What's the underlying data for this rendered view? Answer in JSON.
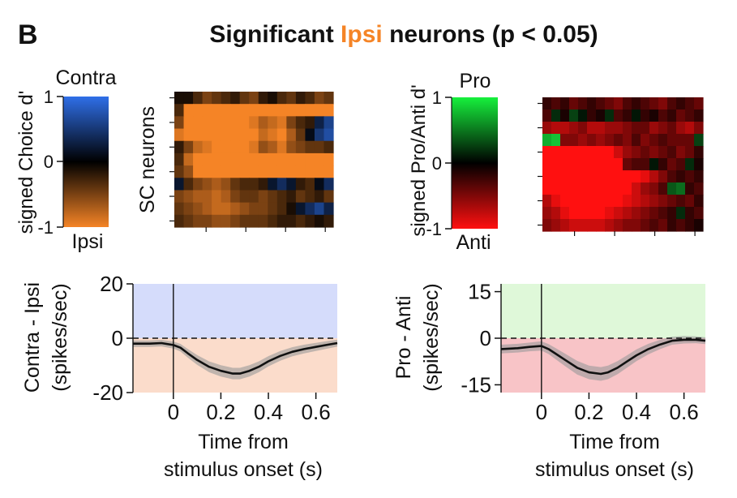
{
  "panel_label": "B",
  "title": {
    "pre": "Significant ",
    "highlight": "Ipsi",
    "post": " neurons (p < 0.05)",
    "highlight_color": "#f58426"
  },
  "colors": {
    "ipsi_orange": "#f58426",
    "contra_blue": "#2f6fe8",
    "pro_green": "#16d93c",
    "anti_red": "#ff1010",
    "contra_fill": "#d5dcfb",
    "ipsi_fill": "#fbdccb",
    "pro_fill": "#dff8d9",
    "anti_fill": "#f8c4c7",
    "sem_band": "#9a9a9a"
  },
  "chart_data": [
    {
      "type": "heatmap",
      "id": "choice-colorbar",
      "top_label": "Contra",
      "bottom_label": "Ipsi",
      "ylabel": "signed Choice d'",
      "ticks": [
        "1",
        "0",
        "-1"
      ],
      "range": [
        -1,
        1
      ],
      "colormap": "blue-black-orange"
    },
    {
      "type": "heatmap",
      "id": "choice-heatmap",
      "ylabel": "SC neurons",
      "values": [
        [
          -0.1,
          -0.1,
          -0.3,
          -0.5,
          -0.4,
          -0.3,
          -0.2,
          -0.4,
          -0.5,
          -0.2,
          -0.1,
          -0.3,
          -0.4,
          -0.2,
          -0.3,
          -0.5,
          -0.4
        ],
        [
          -0.3,
          -1,
          -1,
          -1,
          -1,
          -1,
          -1,
          -1,
          -1,
          -1,
          -1,
          -1,
          -1,
          -1,
          -1,
          -1,
          -1
        ],
        [
          -0.5,
          -1,
          -1,
          -1,
          -1,
          -1,
          -1,
          -1,
          -0.9,
          -0.7,
          -0.8,
          -0.9,
          -0.5,
          -0.3,
          -0.2,
          0.3,
          0.6
        ],
        [
          -0.9,
          -1,
          -1,
          -1,
          -1,
          -1,
          -1,
          -1,
          -1,
          -0.8,
          -0.9,
          -1,
          -0.7,
          -0.4,
          0.1,
          0.5,
          0.7
        ],
        [
          -0.2,
          -0.5,
          -0.8,
          -0.9,
          -1,
          -1,
          -1,
          -1,
          -0.9,
          -0.6,
          -0.7,
          -0.9,
          -0.6,
          -0.5,
          -0.4,
          -0.4,
          -0.3
        ],
        [
          -0.3,
          -0.8,
          -1,
          -1,
          -1,
          -1,
          -1,
          -1,
          -1,
          -1,
          -1,
          -1,
          -1,
          -1,
          -1,
          -1,
          -1
        ],
        [
          -0.4,
          -0.6,
          -1,
          -1,
          -1,
          -1,
          -1,
          -1,
          -1,
          -1,
          -1,
          -1,
          -1,
          -1,
          -1,
          -1,
          -1
        ],
        [
          0.2,
          -0.3,
          -0.5,
          -0.6,
          -0.7,
          -0.6,
          -0.4,
          -0.3,
          -0.3,
          -0.2,
          0.2,
          0.4,
          0.2,
          -0.2,
          -0.3,
          0.1,
          0.4
        ],
        [
          -0.5,
          -0.6,
          -0.7,
          -0.7,
          -0.8,
          -0.7,
          -0.5,
          -0.4,
          -0.4,
          -0.5,
          -0.4,
          -0.3,
          -0.2,
          -0.4,
          -0.3,
          -0.2,
          -0.4
        ],
        [
          -0.4,
          -0.5,
          -0.6,
          -0.7,
          -0.8,
          -0.8,
          -0.7,
          -0.6,
          -0.5,
          -0.5,
          -0.4,
          -0.3,
          -0.1,
          0.2,
          0.4,
          0.6,
          0.3
        ],
        [
          -0.3,
          -0.4,
          -0.5,
          -0.5,
          -0.6,
          -0.6,
          -0.5,
          -0.4,
          -0.4,
          -0.4,
          -0.3,
          -0.2,
          -0.2,
          -0.3,
          -0.2,
          -0.1,
          -0.2
        ]
      ]
    },
    {
      "type": "line",
      "id": "choice-psth",
      "ylabel": [
        "Contra - Ipsi",
        "(spikes/sec)"
      ],
      "xlabel": [
        "Time from",
        "stimulus onset (s)"
      ],
      "xlim": [
        -0.17,
        0.69
      ],
      "ylim": [
        -20,
        20
      ],
      "xticks": [
        0,
        0.2,
        0.4,
        0.6
      ],
      "xtick_labels": [
        "0",
        "0.2",
        "0.4",
        "0.6"
      ],
      "yticks": [
        20,
        0,
        -20
      ],
      "ytick_labels": [
        "20",
        "0",
        "-20"
      ],
      "x": [
        -0.17,
        -0.1,
        -0.05,
        0,
        0.03,
        0.06,
        0.1,
        0.15,
        0.2,
        0.25,
        0.28,
        0.32,
        0.36,
        0.4,
        0.45,
        0.5,
        0.55,
        0.6,
        0.65,
        0.69
      ],
      "y": [
        -2,
        -2,
        -1.8,
        -2.5,
        -3.5,
        -5.5,
        -8,
        -10.5,
        -12,
        -13,
        -13,
        -12,
        -10.5,
        -8.5,
        -6.5,
        -5,
        -4,
        -3.2,
        -2.4,
        -1.8
      ],
      "sem": [
        1.2,
        1.2,
        1.2,
        1.3,
        1.4,
        1.6,
        1.8,
        2,
        2.1,
        2.1,
        2.1,
        2.1,
        2,
        1.9,
        1.8,
        1.7,
        1.6,
        1.5,
        1.4,
        1.3
      ]
    },
    {
      "type": "heatmap",
      "id": "proanti-colorbar",
      "top_label": "Pro",
      "bottom_label": "Anti",
      "ylabel": "signed Pro/Anti d'",
      "ticks": [
        "1",
        "0",
        "-1"
      ],
      "range": [
        -1,
        1
      ],
      "colormap": "green-black-red"
    },
    {
      "type": "heatmap",
      "id": "proanti-heatmap",
      "values": [
        [
          -0.2,
          -0.3,
          -0.2,
          -0.4,
          -0.3,
          -0.2,
          -0.3,
          -0.4,
          -0.5,
          -0.3,
          -0.2,
          -0.3,
          -0.4,
          -0.5,
          -0.3,
          -0.2,
          -0.3,
          -0.4
        ],
        [
          -0.3,
          0.2,
          -0.1,
          0.3,
          0.1,
          -0.2,
          -0.1,
          0.2,
          -0.3,
          -0.2,
          0.1,
          -0.2,
          -0.1,
          -0.3,
          -0.2,
          -0.4,
          -0.3,
          -0.2
        ],
        [
          -0.6,
          -0.7,
          -0.7,
          -0.6,
          -0.5,
          -0.7,
          -0.7,
          -0.6,
          -0.6,
          -0.5,
          -0.4,
          -0.4,
          -0.6,
          -0.5,
          -0.4,
          -0.6,
          -0.7,
          -0.5
        ],
        [
          0.8,
          0.9,
          -0.5,
          -0.5,
          -0.6,
          -0.5,
          -0.6,
          -0.5,
          -0.4,
          -0.5,
          -0.3,
          -0.5,
          -0.4,
          -0.3,
          -0.4,
          -0.4,
          -0.4,
          0.3
        ],
        [
          -1,
          -1,
          -1,
          -1,
          -1,
          -1,
          -1,
          -1,
          -0.8,
          -0.6,
          -0.5,
          -0.4,
          -0.5,
          -0.4,
          -0.3,
          -0.5,
          -0.4,
          -0.2
        ],
        [
          -1,
          -1,
          -1,
          -1,
          -1,
          -1,
          -1,
          -1,
          -1,
          -0.4,
          -0.3,
          -0.3,
          0.1,
          -0.2,
          -0.4,
          -0.3,
          0.2,
          -0.1
        ],
        [
          -1,
          -1,
          -1,
          -1,
          -1,
          -1,
          -1,
          -1,
          -1,
          -1,
          -1,
          -0.9,
          -0.7,
          -0.5,
          -0.3,
          -0.2,
          -0.3,
          -0.2
        ],
        [
          -1,
          -1,
          -1,
          -1,
          -1,
          -1,
          -1,
          -1,
          -1,
          -1,
          -0.8,
          -0.6,
          -0.5,
          -0.3,
          0.4,
          0.5,
          -0.2,
          -0.3
        ],
        [
          -0.7,
          -0.9,
          -1,
          -1,
          -1,
          -1,
          -1,
          -1,
          -1,
          -0.9,
          -0.8,
          -0.7,
          -0.6,
          -0.5,
          -0.4,
          -0.3,
          -0.4,
          -0.2
        ],
        [
          -0.6,
          -0.7,
          -0.9,
          -1,
          -1,
          -1,
          -1,
          -0.9,
          -0.8,
          -0.7,
          -0.6,
          -0.5,
          -0.4,
          -0.3,
          -0.2,
          0.2,
          -0.2,
          -0.3
        ],
        [
          -0.5,
          -0.6,
          -0.7,
          -0.8,
          -0.8,
          -0.8,
          -0.8,
          -0.7,
          -0.6,
          -0.5,
          -0.5,
          -0.4,
          -0.3,
          -0.4,
          -0.2,
          -0.3,
          -0.2,
          -0.1
        ]
      ]
    },
    {
      "type": "line",
      "id": "proanti-psth",
      "ylabel": [
        "Pro - Anti",
        "(spikes/sec)"
      ],
      "xlabel": [
        "Time from",
        "stimulus onset (s)"
      ],
      "xlim": [
        -0.17,
        0.69
      ],
      "ylim": [
        -17.5,
        17.5
      ],
      "xticks": [
        0,
        0.2,
        0.4,
        0.6
      ],
      "xtick_labels": [
        "0",
        "0.2",
        "0.4",
        "0.6"
      ],
      "yticks": [
        15,
        0,
        -15
      ],
      "ytick_labels": [
        "15",
        "0",
        "-15"
      ],
      "x": [
        -0.17,
        -0.1,
        -0.05,
        0,
        0.03,
        0.06,
        0.1,
        0.15,
        0.2,
        0.25,
        0.28,
        0.32,
        0.36,
        0.4,
        0.45,
        0.5,
        0.55,
        0.6,
        0.65,
        0.69
      ],
      "y": [
        -3.5,
        -3.2,
        -2.8,
        -2.5,
        -3.5,
        -5,
        -7,
        -9.5,
        -11,
        -11.5,
        -11,
        -9.5,
        -7.5,
        -5.5,
        -3.5,
        -2,
        -0.8,
        -0.5,
        -0.5,
        -0.8
      ],
      "sem": [
        1.4,
        1.4,
        1.4,
        1.5,
        1.6,
        1.8,
        2,
        2.2,
        2.2,
        2.2,
        2.2,
        2.1,
        2,
        1.9,
        1.7,
        1.5,
        1.3,
        1.2,
        1.1,
        1.1
      ]
    }
  ]
}
